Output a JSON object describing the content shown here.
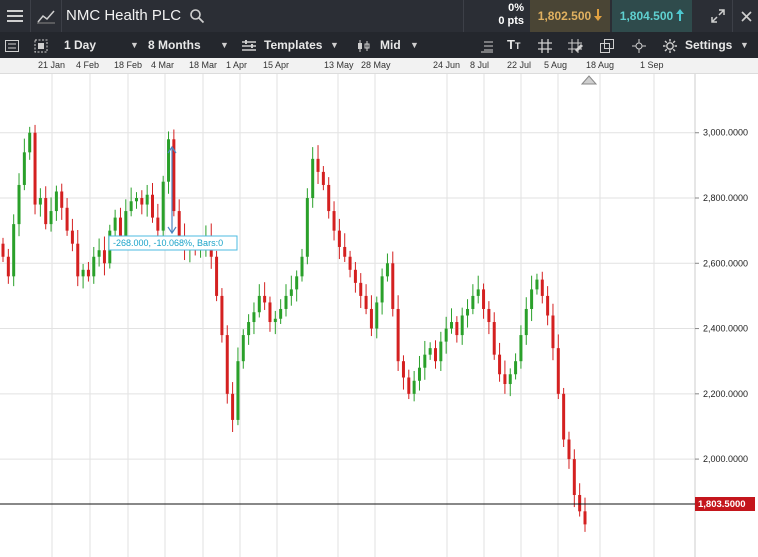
{
  "header": {
    "menu_icon": "hamburger-icon",
    "chart_icon": "line-chart-icon",
    "instrument": "NMC Health PLC",
    "search_icon": "search-icon",
    "change_pct": "0%",
    "change_pts": "0 pts",
    "sell_price": "1,802.500",
    "buy_price": "1,804.500",
    "sell_color": "#e0a040",
    "buy_color": "#4dc8d0"
  },
  "toolbar": {
    "interval": "1 Day",
    "range": "8 Months",
    "templates_label": "Templates",
    "price_type": "Mid",
    "settings_label": "Settings"
  },
  "time_axis": [
    "21 Jan",
    "4 Feb",
    "18 Feb",
    "4 Mar",
    "18 Mar",
    "1 Apr",
    "15 Apr",
    "13 May",
    "28 May",
    "24 Jun",
    "8 Jul",
    "22 Jul",
    "5 Aug",
    "18 Aug",
    "1 Sep"
  ],
  "measure_label": "-268.000, -10.068%, Bars:0",
  "current_price_label": "1,803.5000",
  "chart_data": {
    "type": "candlestick",
    "y_ticks": [
      "3,000.0000",
      "2,800.0000",
      "2,600.0000",
      "2,400.0000",
      "2,200.0000",
      "2,000.0000"
    ],
    "y_tick_values": [
      3000,
      2800,
      2600,
      2400,
      2200,
      2000
    ],
    "ylim": [
      1700,
      3180
    ],
    "current_price": 1803.5,
    "up_color": "#2aa02a",
    "down_color": "#d42020",
    "candles_close": [
      2620,
      2560,
      2720,
      2840,
      2940,
      3000,
      2780,
      2800,
      2720,
      2760,
      2820,
      2770,
      2700,
      2660,
      2560,
      2580,
      2560,
      2620,
      2640,
      2600,
      2700,
      2740,
      2680,
      2760,
      2790,
      2800,
      2780,
      2810,
      2740,
      2700,
      2850,
      2980,
      2760,
      2680,
      2640,
      2660,
      2640,
      2650,
      2680,
      2620,
      2500,
      2380,
      2200,
      2120,
      2300,
      2380,
      2420,
      2450,
      2500,
      2480,
      2420,
      2430,
      2460,
      2500,
      2520,
      2560,
      2620,
      2800,
      2920,
      2880,
      2840,
      2760,
      2700,
      2650,
      2620,
      2580,
      2540,
      2500,
      2460,
      2400,
      2480,
      2560,
      2600,
      2460,
      2300,
      2250,
      2200,
      2240,
      2280,
      2320,
      2340,
      2300,
      2360,
      2400,
      2420,
      2380,
      2440,
      2460,
      2500,
      2520,
      2460,
      2420,
      2320,
      2260,
      2230,
      2260,
      2300,
      2380,
      2460,
      2520,
      2550,
      2500,
      2440,
      2340,
      2200,
      2060,
      2000,
      1890,
      1840,
      1800
    ]
  }
}
